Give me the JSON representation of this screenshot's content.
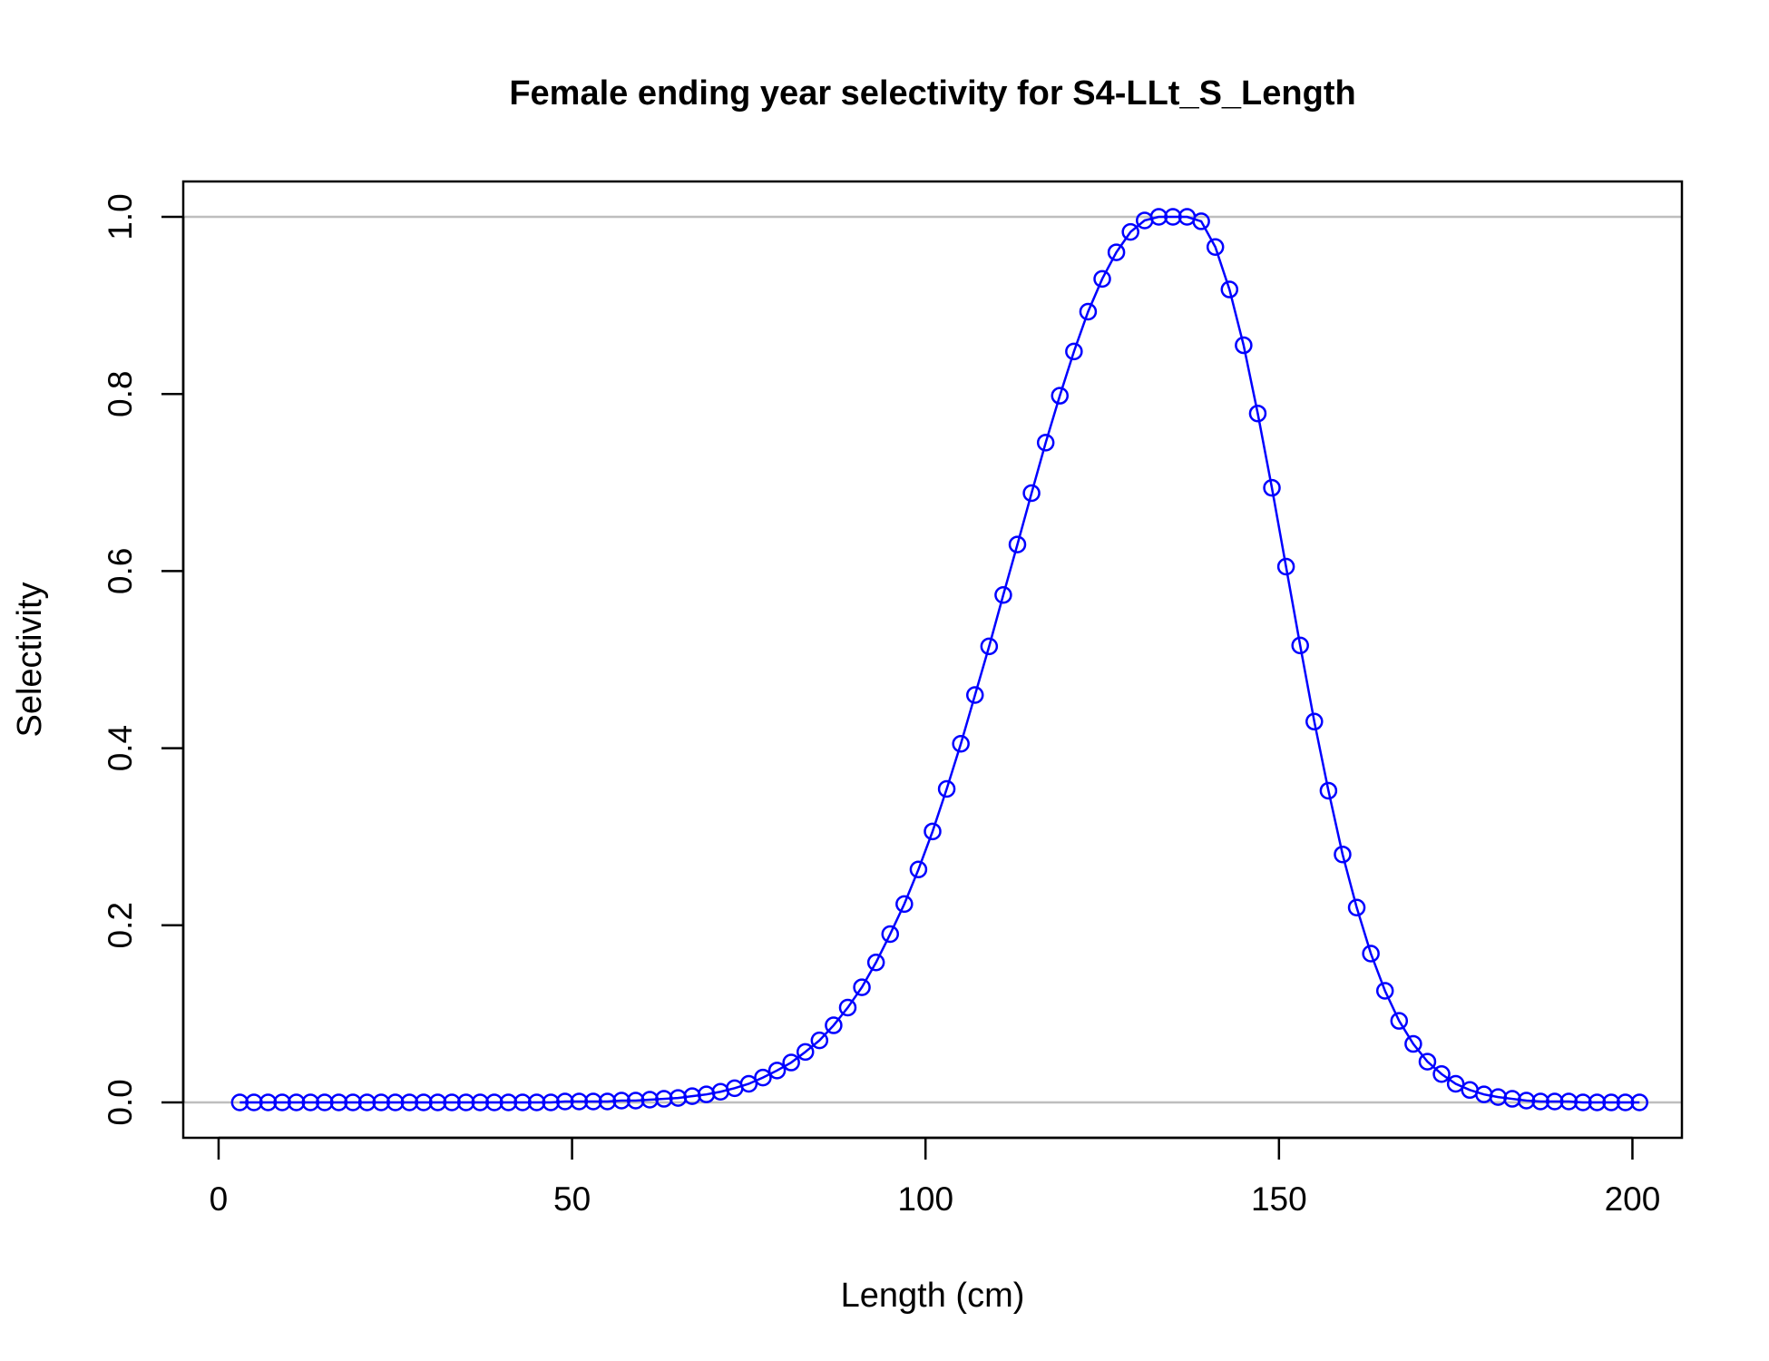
{
  "chart_data": {
    "type": "line",
    "title": "Female ending year selectivity for S4-LLt_S_Length",
    "xlabel": "Length (cm)",
    "ylabel": "Selectivity",
    "xlim": [
      -5,
      207
    ],
    "ylim": [
      -0.04,
      1.04
    ],
    "x_ticks": [
      0,
      50,
      100,
      150,
      200
    ],
    "x_tick_labels": [
      "0",
      "50",
      "100",
      "150",
      "200"
    ],
    "y_ticks": [
      0,
      0.2,
      0.4,
      0.6,
      0.8,
      1.0
    ],
    "y_tick_labels": [
      "0.0",
      "0.2",
      "0.4",
      "0.6",
      "0.8",
      "1.0"
    ],
    "reference_lines": [
      0,
      1
    ],
    "grid": false,
    "legend": "none",
    "colors": {
      "series": "#0000ff",
      "reference": "#bebebe",
      "axes": "#000000"
    },
    "series": [
      {
        "marker": "open-circle",
        "x": [
          3,
          5,
          7,
          9,
          11,
          13,
          15,
          17,
          19,
          21,
          23,
          25,
          27,
          29,
          31,
          33,
          35,
          37,
          39,
          41,
          43,
          45,
          47,
          49,
          51,
          53,
          55,
          57,
          59,
          61,
          63,
          65,
          67,
          69,
          71,
          73,
          75,
          77,
          79,
          81,
          83,
          85,
          87,
          89,
          91,
          93,
          95,
          97,
          99,
          101,
          103,
          105,
          107,
          109,
          111,
          113,
          115,
          117,
          119,
          121,
          123,
          125,
          127,
          129,
          131,
          133,
          135,
          137,
          139,
          141,
          143,
          145,
          147,
          149,
          151,
          153,
          155,
          157,
          159,
          161,
          163,
          165,
          167,
          169,
          171,
          173,
          175,
          177,
          179,
          181,
          183,
          185,
          187,
          189,
          191,
          193,
          195,
          197,
          199,
          201
        ],
        "y": [
          0,
          0,
          0,
          0,
          0,
          0,
          0,
          0,
          0,
          0,
          0,
          0,
          0,
          0,
          0,
          0,
          0,
          0,
          0,
          0,
          0,
          0,
          0,
          0.001,
          0.001,
          0.001,
          0.001,
          0.002,
          0.002,
          0.003,
          0.004,
          0.005,
          0.007,
          0.009,
          0.012,
          0.016,
          0.021,
          0.028,
          0.036,
          0.045,
          0.057,
          0.07,
          0.087,
          0.107,
          0.13,
          0.158,
          0.19,
          0.224,
          0.263,
          0.306,
          0.354,
          0.405,
          0.46,
          0.515,
          0.573,
          0.63,
          0.688,
          0.745,
          0.798,
          0.848,
          0.893,
          0.93,
          0.96,
          0.983,
          0.996,
          1.0,
          1.0,
          1.0,
          0.995,
          0.966,
          0.918,
          0.855,
          0.778,
          0.694,
          0.605,
          0.516,
          0.43,
          0.352,
          0.28,
          0.22,
          0.168,
          0.126,
          0.092,
          0.066,
          0.046,
          0.032,
          0.021,
          0.014,
          0.009,
          0.006,
          0.004,
          0.002,
          0.001,
          0.001,
          0.001,
          0,
          0,
          0,
          0,
          0
        ]
      }
    ]
  }
}
